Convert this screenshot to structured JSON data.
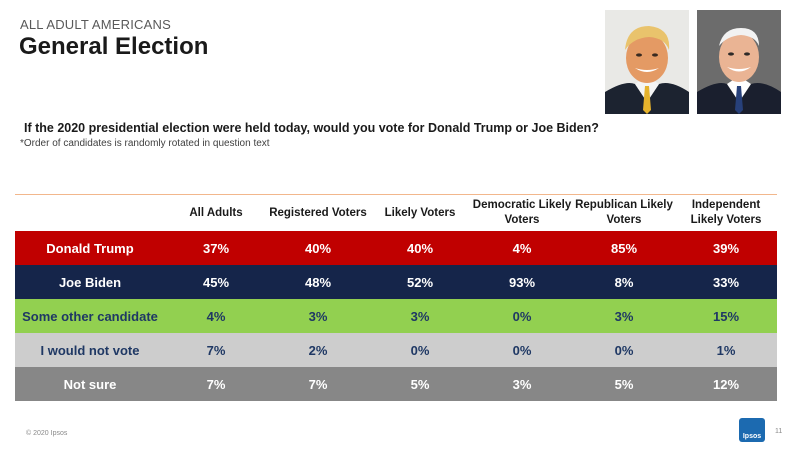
{
  "slide": {
    "eyebrow": "ALL ADULT AMERICANS",
    "title": "General Election",
    "question": "If the 2020 presidential election were held today, would you vote for Donald Trump or Joe Biden?",
    "note": "*Order of candidates is randomly rotated in question text",
    "footer": "© 2020 Ipsos",
    "page_number": "11",
    "logo_text": "Ipsos"
  },
  "table": {
    "columns": [
      "All Adults",
      "Registered Voters",
      "Likely Voters",
      "Democratic Likely Voters",
      "Republican Likely Voters",
      "Independent Likely Voters"
    ],
    "rows": [
      {
        "label": "Donald Trump",
        "values": [
          "37%",
          "40%",
          "40%",
          "4%",
          "85%",
          "39%"
        ]
      },
      {
        "label": "Joe Biden",
        "values": [
          "45%",
          "48%",
          "52%",
          "93%",
          "8%",
          "33%"
        ]
      },
      {
        "label": "Some other candidate",
        "values": [
          "4%",
          "3%",
          "3%",
          "0%",
          "3%",
          "15%"
        ]
      },
      {
        "label": "I would not vote",
        "values": [
          "7%",
          "2%",
          "0%",
          "0%",
          "0%",
          "1%"
        ]
      },
      {
        "label": "Not sure",
        "values": [
          "7%",
          "7%",
          "5%",
          "3%",
          "5%",
          "12%"
        ]
      }
    ]
  },
  "colors": {
    "trump_row": "#c00000",
    "biden_row": "#15254a",
    "other_row": "#92d050",
    "not_vote_row": "#cdcdcd",
    "not_sure_row": "#878787",
    "header_rule": "#f2b78c",
    "logo": "#1c6ab0"
  }
}
